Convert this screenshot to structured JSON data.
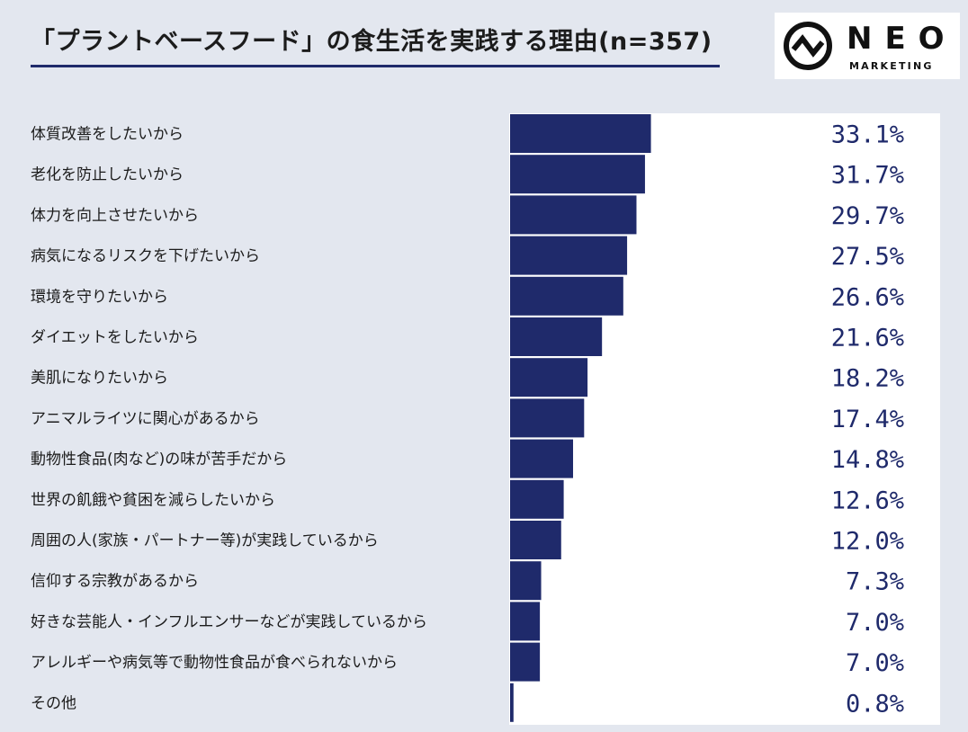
{
  "header": {
    "title": "「プラントベースフード」の食生活を実践する理由(n=357)"
  },
  "logo": {
    "brand": "NEO",
    "sub": "MARKETING",
    "icon": "pulse-circle-icon"
  },
  "colors": {
    "bar": "#1f2a6b",
    "value_text": "#1f2a6b",
    "background": "#e3e7ef",
    "panel": "#ffffff"
  },
  "chart_data": {
    "type": "bar",
    "orientation": "horizontal",
    "title": "「プラントベースフード」の食生活を実践する理由(n=357)",
    "unit": "%",
    "categories": [
      "体質改善をしたいから",
      "老化を防止したいから",
      "体力を向上させたいから",
      "病気になるリスクを下げたいから",
      "環境を守りたいから",
      "ダイエットをしたいから",
      "美肌になりたいから",
      "アニマルライツに関心があるから",
      "動物性食品(肉など)の味が苦手だから",
      "世界の飢餓や貧困を減らしたいから",
      "周囲の人(家族・パートナー等)が実践しているから",
      "信仰する宗教があるから",
      "好きな芸能人・インフルエンサーなどが実践しているから",
      "アレルギーや病気等で動物性食品が食べられないから",
      "その他"
    ],
    "values": [
      33.1,
      31.7,
      29.7,
      27.5,
      26.6,
      21.6,
      18.2,
      17.4,
      14.8,
      12.6,
      12.0,
      7.3,
      7.0,
      7.0,
      0.8
    ],
    "value_labels": [
      "33.1%",
      "31.7%",
      "29.7%",
      "27.5%",
      "26.6%",
      "21.6%",
      "18.2%",
      "17.4%",
      "14.8%",
      "12.6%",
      "12.0%",
      "7.3%",
      "7.0%",
      "7.0%",
      "0.8%"
    ],
    "xlim": [
      0,
      100
    ],
    "grid": false,
    "legend": "none"
  }
}
